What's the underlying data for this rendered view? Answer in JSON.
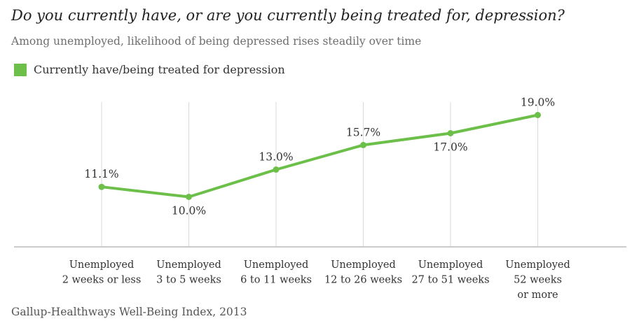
{
  "colors": {
    "series": "#6cc04a",
    "grid": "#d9d9d9",
    "axis": "#bbbbbb",
    "text": "#333333"
  },
  "chart_data": {
    "type": "line",
    "title": "Do you currently have, or are you currently being treated for, depression?",
    "subtitle": "Among unemployed, likelihood of being depressed rises steadily over time",
    "categories": [
      [
        "Unemployed",
        "2 weeks or less"
      ],
      [
        "Unemployed",
        "3 to 5 weeks"
      ],
      [
        "Unemployed",
        "6 to 11 weeks"
      ],
      [
        "Unemployed",
        "12 to 26 weeks"
      ],
      [
        "Unemployed",
        "27 to 51 weeks"
      ],
      [
        "Unemployed",
        "52 weeks",
        "or more"
      ]
    ],
    "series": [
      {
        "name": "Currently have/being treated for depression",
        "values": [
          11.1,
          10.0,
          13.0,
          15.7,
          17.0,
          19.0
        ],
        "labels": [
          "11.1%",
          "10.0%",
          "13.0%",
          "15.7%",
          "17.0%",
          "19.0%"
        ],
        "label_positions": [
          "above",
          "below",
          "above",
          "above",
          "below",
          "above"
        ]
      }
    ],
    "ylim": [
      4.5,
      20.5
    ],
    "grid": "vertical",
    "legend": "top-left",
    "source": "Gallup-Healthways Well-Being Index, 2013"
  }
}
